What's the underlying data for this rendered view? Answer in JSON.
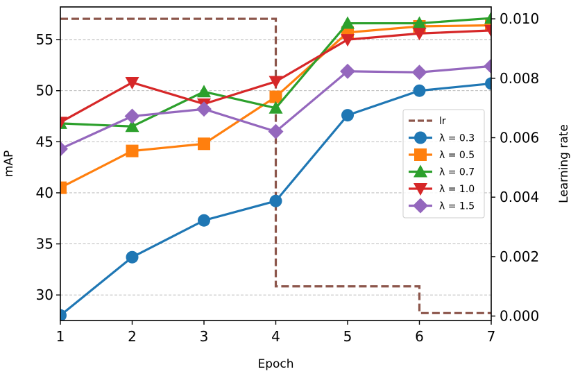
{
  "chart_data": {
    "type": "line",
    "xlabel": "Epoch",
    "ylabel": "mAP",
    "y2label": "Learning rate",
    "x": [
      1,
      2,
      3,
      4,
      5,
      6,
      7
    ],
    "xlim": [
      1,
      7
    ],
    "ylim": [
      27.5,
      58.2
    ],
    "y2lim": [
      -0.00015,
      0.0104
    ],
    "xticks": [
      "1",
      "2",
      "3",
      "4",
      "5",
      "6",
      "7"
    ],
    "yticks": [
      30,
      35,
      40,
      45,
      50,
      55
    ],
    "ytick_labels": [
      "30",
      "35",
      "40",
      "45",
      "50",
      "55"
    ],
    "y2ticks": [
      0.0,
      0.002,
      0.004,
      0.006,
      0.008,
      0.01
    ],
    "y2tick_labels": [
      "0.000",
      "0.002",
      "0.004",
      "0.006",
      "0.008",
      "0.010"
    ],
    "grid": "horizontal dashed",
    "legend_position": "right",
    "lr": {
      "name": "lr",
      "color": "#8c564b",
      "style": "dashed-step",
      "steps": [
        [
          1,
          0.01
        ],
        [
          4,
          0.01
        ],
        [
          4,
          0.001
        ],
        [
          6,
          0.001
        ],
        [
          6,
          0.0001
        ],
        [
          7,
          0.0001
        ]
      ]
    },
    "series": [
      {
        "name": "λ = 0.3",
        "color": "#1f77b4",
        "marker": "circle",
        "values": [
          28.0,
          33.7,
          37.3,
          39.2,
          47.6,
          50.0,
          50.7
        ]
      },
      {
        "name": "λ = 0.5",
        "color": "#ff7f0e",
        "marker": "square",
        "values": [
          40.5,
          44.1,
          44.8,
          49.4,
          55.7,
          56.3,
          56.4
        ]
      },
      {
        "name": "λ = 0.7",
        "color": "#2ca02c",
        "marker": "triangle-up",
        "values": [
          46.8,
          46.5,
          49.9,
          48.3,
          56.6,
          56.6,
          57.1
        ]
      },
      {
        "name": "λ = 1.0",
        "color": "#d62728",
        "marker": "triangle-down",
        "values": [
          46.9,
          50.8,
          48.7,
          50.9,
          55.0,
          55.6,
          55.9
        ]
      },
      {
        "name": "λ = 1.5",
        "color": "#9467bd",
        "marker": "diamond",
        "values": [
          44.3,
          47.5,
          48.2,
          46.0,
          51.9,
          51.8,
          52.4
        ]
      }
    ],
    "legend": [
      "lr",
      "λ = 0.3",
      "λ = 0.5",
      "λ = 0.7",
      "λ = 1.0",
      "λ = 1.5"
    ]
  }
}
